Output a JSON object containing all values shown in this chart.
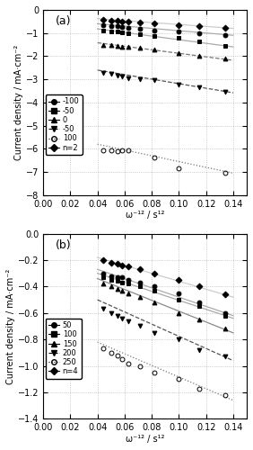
{
  "panel_a": {
    "title": "(a)",
    "ylabel": "Current density / mA·cm⁻²",
    "xlabel": "ω⁻¹² / s¹²",
    "xlim": [
      0,
      0.15
    ],
    "ylim": [
      -8,
      0
    ],
    "yticks": [
      -8,
      -7,
      -6,
      -5,
      -4,
      -3,
      -2,
      -1,
      0
    ],
    "xticks": [
      0,
      0.02,
      0.04,
      0.06,
      0.08,
      0.1,
      0.12,
      0.14
    ],
    "series": [
      {
        "label": "-100",
        "marker": "o",
        "linestyle": "-",
        "color": "#000000",
        "fillstyle": "full",
        "x": [
          0.044,
          0.05,
          0.055,
          0.058,
          0.063,
          0.071,
          0.082,
          0.1,
          0.115,
          0.134
        ],
        "y": [
          -0.65,
          -0.7,
          -0.72,
          -0.75,
          -0.78,
          -0.82,
          -0.88,
          -0.95,
          -1.02,
          -1.08
        ],
        "fit_x": [
          0.04,
          0.14
        ],
        "fit_y": [
          -0.6,
          -1.1
        ],
        "fit_ls": "-",
        "fit_color": "#aaaaaa"
      },
      {
        "label": "-50",
        "marker": "s",
        "linestyle": "-",
        "color": "#000000",
        "fillstyle": "full",
        "x": [
          0.044,
          0.05,
          0.055,
          0.058,
          0.063,
          0.071,
          0.082,
          0.1,
          0.115,
          0.134
        ],
        "y": [
          -0.88,
          -0.92,
          -0.95,
          -0.98,
          -1.0,
          -1.05,
          -1.12,
          -1.22,
          -1.35,
          -1.55
        ],
        "fit_x": [
          0.04,
          0.14
        ],
        "fit_y": [
          -0.82,
          -1.6
        ],
        "fit_ls": "-",
        "fit_color": "#aaaaaa"
      },
      {
        "label": "0",
        "marker": "^",
        "linestyle": "-",
        "color": "#000000",
        "fillstyle": "full",
        "x": [
          0.044,
          0.05,
          0.055,
          0.058,
          0.063,
          0.071,
          0.082,
          0.1,
          0.115,
          0.134
        ],
        "y": [
          -1.5,
          -1.52,
          -1.55,
          -1.58,
          -1.6,
          -1.62,
          -1.7,
          -1.85,
          -2.0,
          -2.1
        ],
        "fit_x": [
          0.04,
          0.14
        ],
        "fit_y": [
          -1.42,
          -2.18
        ],
        "fit_ls": "--",
        "fit_color": "#777777"
      },
      {
        "label": "-50",
        "marker": "v",
        "linestyle": "--",
        "color": "#000000",
        "fillstyle": "full",
        "x": [
          0.044,
          0.05,
          0.055,
          0.058,
          0.063,
          0.071,
          0.082,
          0.1,
          0.115,
          0.134
        ],
        "y": [
          -2.72,
          -2.78,
          -2.82,
          -2.88,
          -2.95,
          -3.0,
          -3.05,
          -3.22,
          -3.35,
          -3.52
        ],
        "fit_x": [
          0.04,
          0.14
        ],
        "fit_y": [
          -2.6,
          -3.58
        ],
        "fit_ls": "--",
        "fit_color": "#555555"
      },
      {
        "label": "100",
        "marker": "o",
        "linestyle": ":",
        "color": "#000000",
        "fillstyle": "none",
        "x": [
          0.044,
          0.05,
          0.055,
          0.058,
          0.063,
          0.082,
          0.1,
          0.134
        ],
        "y": [
          -6.05,
          -6.08,
          -6.1,
          -6.05,
          -6.08,
          -6.38,
          -6.85,
          -7.02
        ],
        "fit_x": [
          0.04,
          0.14
        ],
        "fit_y": [
          -5.8,
          -7.05
        ],
        "fit_ls": ":",
        "fit_color": "#777777"
      },
      {
        "label": "n=2",
        "marker": "D",
        "linestyle": "-",
        "color": "#000000",
        "fillstyle": "full",
        "x": [
          0.044,
          0.05,
          0.055,
          0.058,
          0.063,
          0.071,
          0.082,
          0.1,
          0.115,
          0.134
        ],
        "y": [
          -0.42,
          -0.45,
          -0.47,
          -0.49,
          -0.52,
          -0.55,
          -0.6,
          -0.68,
          -0.72,
          -0.78
        ],
        "fit_x": [
          0.04,
          0.14
        ],
        "fit_y": [
          -0.38,
          -0.8
        ],
        "fit_ls": "-",
        "fit_color": "#cccccc"
      }
    ]
  },
  "panel_b": {
    "title": "(b)",
    "ylabel": "Current density / mA·cm⁻²",
    "xlabel": "ω⁻¹² / s¹²",
    "xlim": [
      0,
      0.15
    ],
    "ylim": [
      -1.4,
      0
    ],
    "yticks": [
      -1.4,
      -1.2,
      -1.0,
      -0.8,
      -0.6,
      -0.4,
      -0.2,
      0
    ],
    "xticks": [
      0,
      0.02,
      0.04,
      0.06,
      0.08,
      0.1,
      0.12,
      0.14
    ],
    "series": [
      {
        "label": "50",
        "marker": "o",
        "linestyle": "-",
        "color": "#000000",
        "fillstyle": "full",
        "x": [
          0.044,
          0.05,
          0.055,
          0.058,
          0.063,
          0.071,
          0.082,
          0.1,
          0.115,
          0.134
        ],
        "y": [
          -0.3,
          -0.32,
          -0.33,
          -0.33,
          -0.35,
          -0.37,
          -0.4,
          -0.45,
          -0.52,
          -0.6
        ],
        "fit_x": [
          0.04,
          0.14
        ],
        "fit_y": [
          -0.27,
          -0.62
        ],
        "fit_ls": "-",
        "fit_color": "#aaaaaa"
      },
      {
        "label": "100",
        "marker": "s",
        "linestyle": "-",
        "color": "#000000",
        "fillstyle": "full",
        "x": [
          0.044,
          0.05,
          0.055,
          0.058,
          0.063,
          0.071,
          0.082,
          0.1,
          0.115,
          0.134
        ],
        "y": [
          -0.33,
          -0.35,
          -0.36,
          -0.37,
          -0.38,
          -0.4,
          -0.43,
          -0.5,
          -0.55,
          -0.62
        ],
        "fit_x": [
          0.04,
          0.14
        ],
        "fit_y": [
          -0.3,
          -0.64
        ],
        "fit_ls": "-",
        "fit_color": "#aaaaaa"
      },
      {
        "label": "150",
        "marker": "^",
        "linestyle": "-",
        "color": "#000000",
        "fillstyle": "full",
        "x": [
          0.044,
          0.05,
          0.055,
          0.058,
          0.063,
          0.071,
          0.082,
          0.1,
          0.115,
          0.134
        ],
        "y": [
          -0.38,
          -0.4,
          -0.42,
          -0.43,
          -0.45,
          -0.48,
          -0.52,
          -0.6,
          -0.65,
          -0.72
        ],
        "fit_x": [
          0.04,
          0.14
        ],
        "fit_y": [
          -0.34,
          -0.75
        ],
        "fit_ls": "-",
        "fit_color": "#888888"
      },
      {
        "label": "200",
        "marker": "v",
        "linestyle": "--",
        "color": "#000000",
        "fillstyle": "full",
        "x": [
          0.044,
          0.05,
          0.055,
          0.058,
          0.063,
          0.071,
          0.082,
          0.1,
          0.115,
          0.134
        ],
        "y": [
          -0.57,
          -0.6,
          -0.62,
          -0.64,
          -0.66,
          -0.7,
          -0.75,
          -0.8,
          -0.88,
          -0.93
        ],
        "fit_x": [
          0.04,
          0.14
        ],
        "fit_y": [
          -0.5,
          -0.96
        ],
        "fit_ls": "--",
        "fit_color": "#555555"
      },
      {
        "label": "250",
        "marker": "o",
        "linestyle": ":",
        "color": "#000000",
        "fillstyle": "none",
        "x": [
          0.044,
          0.05,
          0.055,
          0.058,
          0.063,
          0.071,
          0.082,
          0.1,
          0.115,
          0.134
        ],
        "y": [
          -0.87,
          -0.9,
          -0.92,
          -0.95,
          -0.98,
          -1.0,
          -1.05,
          -1.1,
          -1.17,
          -1.22
        ],
        "fit_x": [
          0.04,
          0.14
        ],
        "fit_y": [
          -0.82,
          -1.26
        ],
        "fit_ls": ":",
        "fit_color": "#777777"
      },
      {
        "label": "n=4",
        "marker": "D",
        "linestyle": "-",
        "color": "#000000",
        "fillstyle": "full",
        "x": [
          0.044,
          0.05,
          0.055,
          0.058,
          0.063,
          0.071,
          0.082,
          0.1,
          0.115,
          0.134
        ],
        "y": [
          -0.2,
          -0.22,
          -0.23,
          -0.24,
          -0.25,
          -0.27,
          -0.3,
          -0.35,
          -0.4,
          -0.46
        ],
        "fit_x": [
          0.04,
          0.14
        ],
        "fit_y": [
          -0.18,
          -0.48
        ],
        "fit_ls": "-",
        "fit_color": "#cccccc"
      }
    ]
  }
}
